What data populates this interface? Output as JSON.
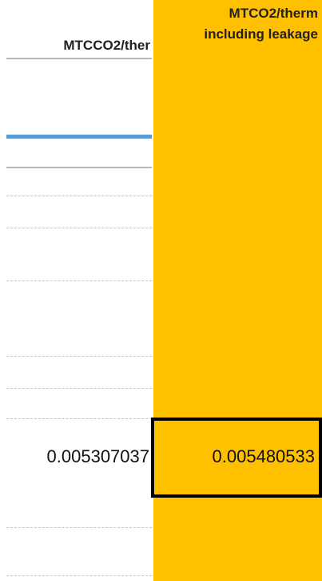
{
  "columns": [
    {
      "header_lines": [
        "MTCCO2/ther"
      ],
      "value": 0.005307037
    },
    {
      "header_lines": [
        "MTCO2/therm",
        "including leakage"
      ],
      "value": 0.005480533
    }
  ]
}
